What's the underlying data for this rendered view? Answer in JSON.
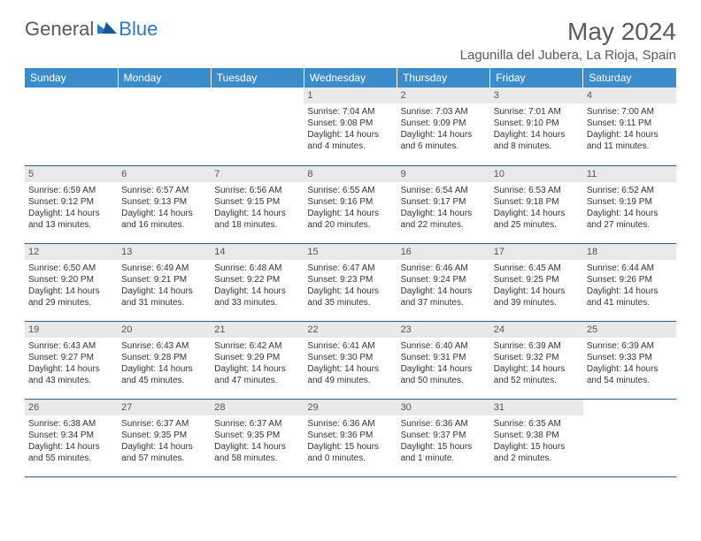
{
  "logo": {
    "general": "General",
    "blue": "Blue"
  },
  "title": "May 2024",
  "location": "Lagunilla del Jubera, La Rioja, Spain",
  "colors": {
    "header_bg": "#3b8ccb",
    "header_text": "#ffffff",
    "border": "#2b5f8a",
    "daynum_bg": "#e9e9e9",
    "text": "#333333",
    "logo_gray": "#5a5a5a",
    "logo_blue": "#2b7bbf"
  },
  "weekdays": [
    "Sunday",
    "Monday",
    "Tuesday",
    "Wednesday",
    "Thursday",
    "Friday",
    "Saturday"
  ],
  "weeks": [
    [
      {
        "day": "",
        "sunrise": "",
        "sunset": "",
        "daylight": ""
      },
      {
        "day": "",
        "sunrise": "",
        "sunset": "",
        "daylight": ""
      },
      {
        "day": "",
        "sunrise": "",
        "sunset": "",
        "daylight": ""
      },
      {
        "day": "1",
        "sunrise": "Sunrise: 7:04 AM",
        "sunset": "Sunset: 9:08 PM",
        "daylight": "Daylight: 14 hours and 4 minutes."
      },
      {
        "day": "2",
        "sunrise": "Sunrise: 7:03 AM",
        "sunset": "Sunset: 9:09 PM",
        "daylight": "Daylight: 14 hours and 6 minutes."
      },
      {
        "day": "3",
        "sunrise": "Sunrise: 7:01 AM",
        "sunset": "Sunset: 9:10 PM",
        "daylight": "Daylight: 14 hours and 8 minutes."
      },
      {
        "day": "4",
        "sunrise": "Sunrise: 7:00 AM",
        "sunset": "Sunset: 9:11 PM",
        "daylight": "Daylight: 14 hours and 11 minutes."
      }
    ],
    [
      {
        "day": "5",
        "sunrise": "Sunrise: 6:59 AM",
        "sunset": "Sunset: 9:12 PM",
        "daylight": "Daylight: 14 hours and 13 minutes."
      },
      {
        "day": "6",
        "sunrise": "Sunrise: 6:57 AM",
        "sunset": "Sunset: 9:13 PM",
        "daylight": "Daylight: 14 hours and 16 minutes."
      },
      {
        "day": "7",
        "sunrise": "Sunrise: 6:56 AM",
        "sunset": "Sunset: 9:15 PM",
        "daylight": "Daylight: 14 hours and 18 minutes."
      },
      {
        "day": "8",
        "sunrise": "Sunrise: 6:55 AM",
        "sunset": "Sunset: 9:16 PM",
        "daylight": "Daylight: 14 hours and 20 minutes."
      },
      {
        "day": "9",
        "sunrise": "Sunrise: 6:54 AM",
        "sunset": "Sunset: 9:17 PM",
        "daylight": "Daylight: 14 hours and 22 minutes."
      },
      {
        "day": "10",
        "sunrise": "Sunrise: 6:53 AM",
        "sunset": "Sunset: 9:18 PM",
        "daylight": "Daylight: 14 hours and 25 minutes."
      },
      {
        "day": "11",
        "sunrise": "Sunrise: 6:52 AM",
        "sunset": "Sunset: 9:19 PM",
        "daylight": "Daylight: 14 hours and 27 minutes."
      }
    ],
    [
      {
        "day": "12",
        "sunrise": "Sunrise: 6:50 AM",
        "sunset": "Sunset: 9:20 PM",
        "daylight": "Daylight: 14 hours and 29 minutes."
      },
      {
        "day": "13",
        "sunrise": "Sunrise: 6:49 AM",
        "sunset": "Sunset: 9:21 PM",
        "daylight": "Daylight: 14 hours and 31 minutes."
      },
      {
        "day": "14",
        "sunrise": "Sunrise: 6:48 AM",
        "sunset": "Sunset: 9:22 PM",
        "daylight": "Daylight: 14 hours and 33 minutes."
      },
      {
        "day": "15",
        "sunrise": "Sunrise: 6:47 AM",
        "sunset": "Sunset: 9:23 PM",
        "daylight": "Daylight: 14 hours and 35 minutes."
      },
      {
        "day": "16",
        "sunrise": "Sunrise: 6:46 AM",
        "sunset": "Sunset: 9:24 PM",
        "daylight": "Daylight: 14 hours and 37 minutes."
      },
      {
        "day": "17",
        "sunrise": "Sunrise: 6:45 AM",
        "sunset": "Sunset: 9:25 PM",
        "daylight": "Daylight: 14 hours and 39 minutes."
      },
      {
        "day": "18",
        "sunrise": "Sunrise: 6:44 AM",
        "sunset": "Sunset: 9:26 PM",
        "daylight": "Daylight: 14 hours and 41 minutes."
      }
    ],
    [
      {
        "day": "19",
        "sunrise": "Sunrise: 6:43 AM",
        "sunset": "Sunset: 9:27 PM",
        "daylight": "Daylight: 14 hours and 43 minutes."
      },
      {
        "day": "20",
        "sunrise": "Sunrise: 6:43 AM",
        "sunset": "Sunset: 9:28 PM",
        "daylight": "Daylight: 14 hours and 45 minutes."
      },
      {
        "day": "21",
        "sunrise": "Sunrise: 6:42 AM",
        "sunset": "Sunset: 9:29 PM",
        "daylight": "Daylight: 14 hours and 47 minutes."
      },
      {
        "day": "22",
        "sunrise": "Sunrise: 6:41 AM",
        "sunset": "Sunset: 9:30 PM",
        "daylight": "Daylight: 14 hours and 49 minutes."
      },
      {
        "day": "23",
        "sunrise": "Sunrise: 6:40 AM",
        "sunset": "Sunset: 9:31 PM",
        "daylight": "Daylight: 14 hours and 50 minutes."
      },
      {
        "day": "24",
        "sunrise": "Sunrise: 6:39 AM",
        "sunset": "Sunset: 9:32 PM",
        "daylight": "Daylight: 14 hours and 52 minutes."
      },
      {
        "day": "25",
        "sunrise": "Sunrise: 6:39 AM",
        "sunset": "Sunset: 9:33 PM",
        "daylight": "Daylight: 14 hours and 54 minutes."
      }
    ],
    [
      {
        "day": "26",
        "sunrise": "Sunrise: 6:38 AM",
        "sunset": "Sunset: 9:34 PM",
        "daylight": "Daylight: 14 hours and 55 minutes."
      },
      {
        "day": "27",
        "sunrise": "Sunrise: 6:37 AM",
        "sunset": "Sunset: 9:35 PM",
        "daylight": "Daylight: 14 hours and 57 minutes."
      },
      {
        "day": "28",
        "sunrise": "Sunrise: 6:37 AM",
        "sunset": "Sunset: 9:35 PM",
        "daylight": "Daylight: 14 hours and 58 minutes."
      },
      {
        "day": "29",
        "sunrise": "Sunrise: 6:36 AM",
        "sunset": "Sunset: 9:36 PM",
        "daylight": "Daylight: 15 hours and 0 minutes."
      },
      {
        "day": "30",
        "sunrise": "Sunrise: 6:36 AM",
        "sunset": "Sunset: 9:37 PM",
        "daylight": "Daylight: 15 hours and 1 minute."
      },
      {
        "day": "31",
        "sunrise": "Sunrise: 6:35 AM",
        "sunset": "Sunset: 9:38 PM",
        "daylight": "Daylight: 15 hours and 2 minutes."
      },
      {
        "day": "",
        "sunrise": "",
        "sunset": "",
        "daylight": ""
      }
    ]
  ]
}
